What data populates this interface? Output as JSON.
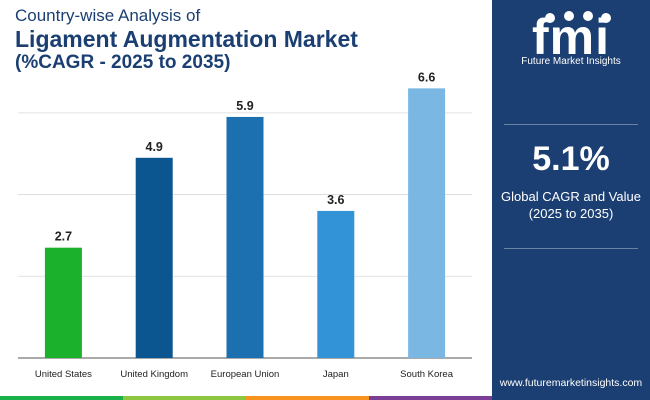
{
  "header": {
    "line1": "Country-wise Analysis of",
    "line2": "Ligament Augmentation Market",
    "line3": "(%CAGR - 2025 to 2035)"
  },
  "brand": {
    "logo_text": "fmi",
    "tagline": "Future Market Insights",
    "website": "www.futuremarketinsights.com"
  },
  "highlight": {
    "value": "5.1%",
    "label_line1": "Global CAGR and Value",
    "label_line2": "(2025 to 2035)"
  },
  "colors": {
    "navy": "#1b3f72",
    "footer": [
      "#1bb14a",
      "#8dc63f",
      "#f7941d",
      "#7b3f98"
    ]
  },
  "chart_data": {
    "type": "bar",
    "categories": [
      "United States",
      "United Kingdom",
      "European Union",
      "Japan",
      "South Korea"
    ],
    "values": [
      2.7,
      4.9,
      5.9,
      3.6,
      6.6
    ],
    "data_labels": [
      "2.7",
      "4.9",
      "5.9",
      "3.6",
      "6.6"
    ],
    "bar_colors": [
      "#1bb12d",
      "#0b5591",
      "#1d70b0",
      "#3294d6",
      "#7ab8e3"
    ],
    "ylim": [
      0,
      7
    ],
    "y_gridlines": [
      0,
      2,
      4,
      6
    ],
    "grid": true,
    "legend": "none",
    "title": "",
    "xlabel": "",
    "ylabel": ""
  }
}
